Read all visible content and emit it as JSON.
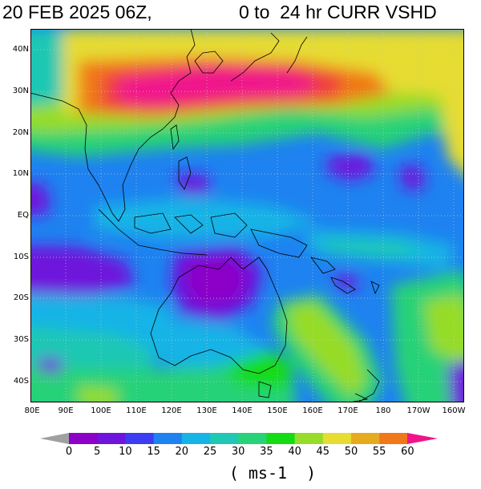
{
  "title": {
    "date": "20 FEB 2025 06Z,",
    "range": "0 to  24 hr CURR VSHD"
  },
  "map": {
    "lat_labels": [
      "40N",
      "30N",
      "20N",
      "10N",
      "EQ",
      "10S",
      "20S",
      "30S",
      "40S"
    ],
    "lon_labels": [
      "80E",
      "90E",
      "100E",
      "110E",
      "120E",
      "130E",
      "140E",
      "150E",
      "160E",
      "170E",
      "180",
      "170W",
      "160W"
    ]
  },
  "colorbar": {
    "ticks": [
      "0",
      "5",
      "10",
      "15",
      "20",
      "25",
      "30",
      "35",
      "40",
      "45",
      "50",
      "55",
      "60"
    ],
    "colors": [
      "#8c00c8",
      "#6e14dc",
      "#3c3cf0",
      "#1e82f0",
      "#14b4e6",
      "#1ec8b4",
      "#28d278",
      "#14dc14",
      "#96dc28",
      "#e6dc32",
      "#e6aa1e",
      "#f07818",
      "#f03c3c",
      "#f0148c"
    ],
    "units": "( ms-1  )"
  }
}
